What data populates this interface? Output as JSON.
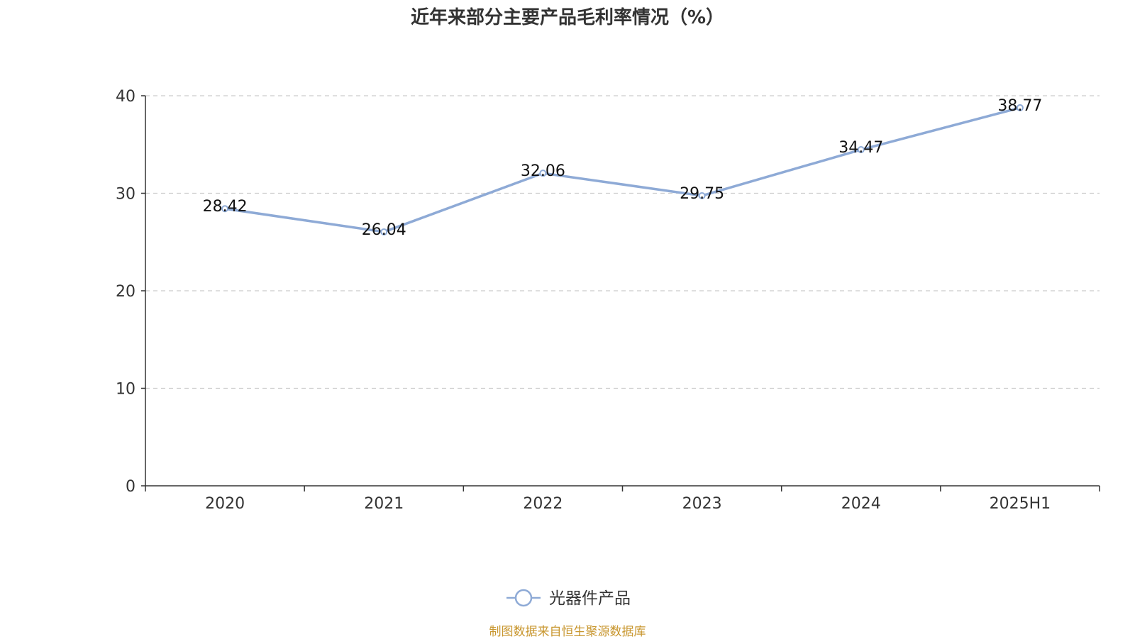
{
  "chart_data": {
    "type": "line",
    "title": "近年来部分主要产品毛利率情况（%）",
    "xlabel": "",
    "ylabel": "",
    "categories": [
      "2020",
      "2021",
      "2022",
      "2023",
      "2024",
      "2025H1"
    ],
    "series": [
      {
        "name": "光器件产品",
        "values": [
          28.42,
          26.04,
          32.06,
          29.75,
          34.47,
          38.77
        ],
        "color": "#8eaad6"
      }
    ],
    "ylim": [
      0,
      40
    ],
    "yticks": [
      "0",
      "10",
      "20",
      "30",
      "40"
    ],
    "grid": true,
    "legend_position": "bottom-center"
  },
  "source_note": "制图数据来自恒生聚源数据库",
  "colors": {
    "line": "#8eaad6",
    "source_note": "#c8962e",
    "axis": "#333333",
    "grid": "#cccccc"
  }
}
